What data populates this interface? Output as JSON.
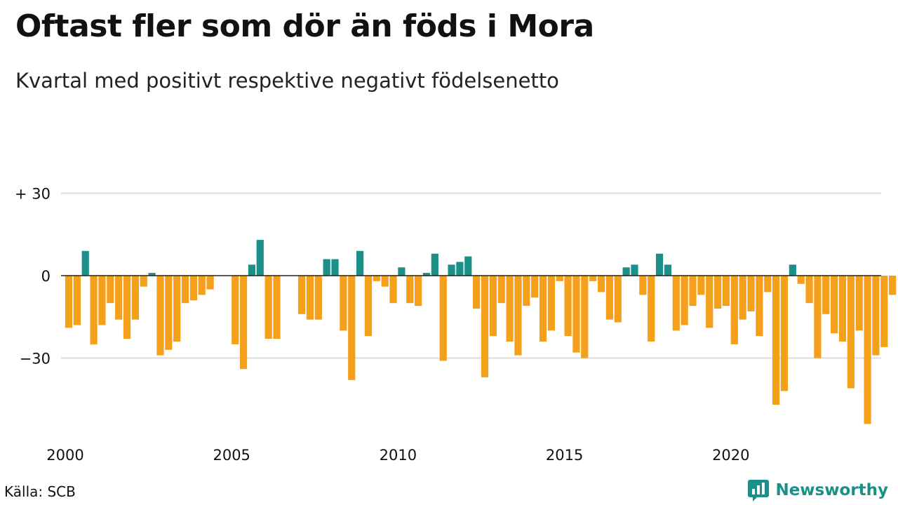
{
  "header": {
    "title": "Oftast fler som dör än föds i Mora",
    "subtitle": "Kvartal med positivt respektive negativt födelsenetto"
  },
  "footer": {
    "source": "Källa: SCB",
    "brand": "Newsworthy"
  },
  "colors": {
    "positive": "#1a9088",
    "negative": "#f5a01a",
    "brand": "#1a9088",
    "grid": "#dddddd",
    "zero_line": "#222222"
  },
  "chart_data": {
    "type": "bar",
    "x_start_year": 2000,
    "periods_per_year": 4,
    "x_tick_labels": [
      "2000",
      "2005",
      "2010",
      "2015",
      "2020"
    ],
    "y_ticks": [
      {
        "value": 30,
        "label": "+ 30"
      },
      {
        "value": 0,
        "label": "0"
      },
      {
        "value": -30,
        "label": "−30"
      }
    ],
    "ylim": [
      -55,
      30
    ],
    "grid": true,
    "values": [
      -19,
      -18,
      9,
      -25,
      -18,
      -10,
      -16,
      -23,
      -16,
      -4,
      1,
      -29,
      -27,
      -24,
      -10,
      -9,
      -7,
      -5,
      0,
      0,
      -25,
      -34,
      4,
      13,
      -23,
      -23,
      0,
      0,
      -14,
      -16,
      -16,
      6,
      6,
      -20,
      -38,
      9,
      -22,
      -2,
      -4,
      -10,
      3,
      -10,
      -11,
      1,
      8,
      -31,
      4,
      5,
      7,
      -12,
      -37,
      -22,
      -10,
      -24,
      -29,
      -11,
      -8,
      -24,
      -20,
      -2,
      -22,
      -28,
      -30,
      -2,
      -6,
      -16,
      -17,
      3,
      4,
      -7,
      -24,
      8,
      4,
      -20,
      -18,
      -11,
      -7,
      -19,
      -12,
      -11,
      -25,
      -16,
      -13,
      -22,
      -6,
      -47,
      -42,
      4,
      -3,
      -10,
      -30,
      -14,
      -21,
      -24,
      -41,
      -20,
      -54,
      -29,
      -26,
      -7
    ]
  }
}
